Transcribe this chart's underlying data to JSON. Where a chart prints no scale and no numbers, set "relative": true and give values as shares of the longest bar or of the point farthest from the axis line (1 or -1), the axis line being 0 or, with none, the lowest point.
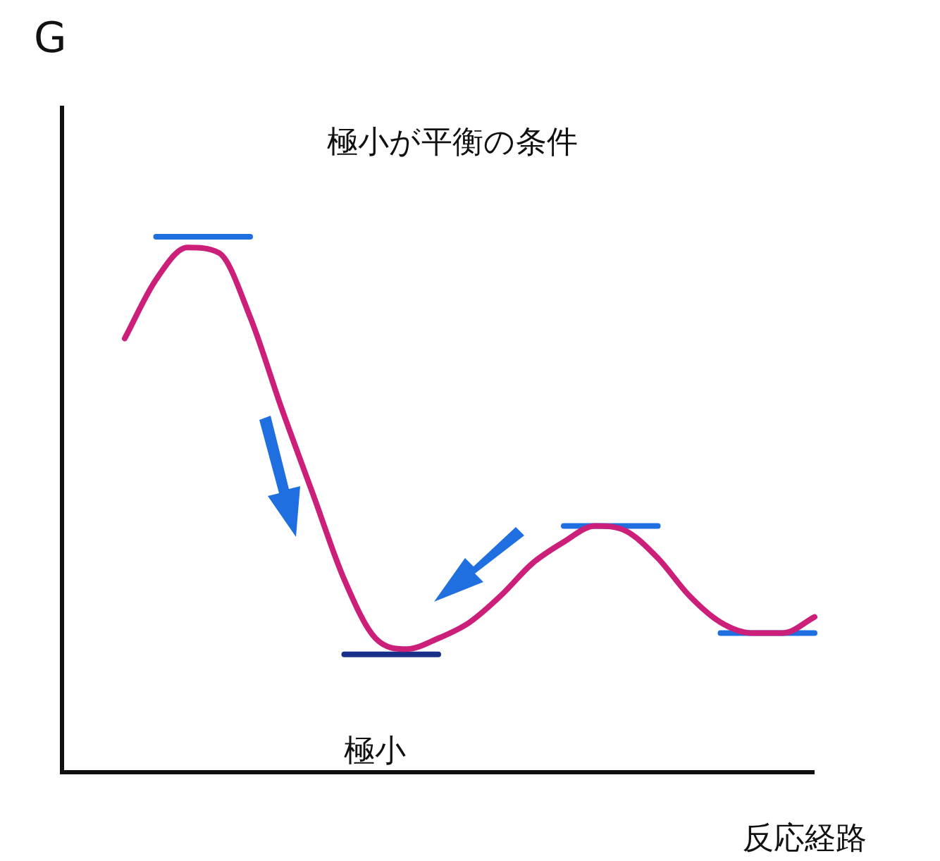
{
  "chart_data": {
    "type": "line",
    "title": "極小が平衡の条件",
    "ylabel": "G",
    "xlabel": "反応経路",
    "annotations": [
      "極小"
    ],
    "relative": true,
    "legend": false,
    "tick_labels": false,
    "marker": "none",
    "categories": [
      null,
      null,
      null,
      null,
      null,
      null,
      null,
      null,
      null,
      null,
      null,
      null,
      null,
      null,
      null,
      null,
      null,
      null,
      null,
      null,
      null,
      null,
      null,
      null,
      null
    ],
    "series": [
      {
        "color": "#cc1f7a",
        "values": [
          null,
          null,
          0.81,
          0.92,
          0.98,
          0.97,
          0.85,
          0.68,
          0.52,
          0.36,
          0.25,
          0.23,
          0.25,
          0.28,
          0.33,
          0.39,
          0.43,
          0.46,
          0.45,
          0.4,
          0.33,
          0.28,
          0.26,
          0.26,
          0.29
        ]
      },
      {
        "color": "#1f6fe0",
        "values": [
          null,
          null,
          null,
          1,
          1,
          1,
          1,
          null,
          null,
          null,
          null,
          null,
          null,
          null,
          null,
          null,
          null,
          null,
          null,
          null,
          null,
          null,
          null,
          null,
          null
        ]
      },
      {
        "color": "#1a2f8a",
        "values": [
          null,
          null,
          null,
          null,
          null,
          null,
          null,
          null,
          null,
          0.22,
          0.22,
          0.22,
          0.22,
          null,
          null,
          null,
          null,
          null,
          null,
          null,
          null,
          null,
          null,
          null,
          null
        ]
      },
      {
        "color": "#1f6fe0",
        "values": [
          null,
          null,
          null,
          null,
          null,
          null,
          null,
          null,
          null,
          null,
          null,
          null,
          null,
          null,
          null,
          null,
          0.46,
          0.46,
          0.46,
          0.46,
          null,
          null,
          null,
          null,
          null
        ]
      },
      {
        "color": "#1f6fe0",
        "values": [
          null,
          null,
          null,
          null,
          null,
          null,
          null,
          null,
          null,
          null,
          null,
          null,
          null,
          null,
          null,
          null,
          null,
          null,
          null,
          null,
          null,
          0.26,
          0.26,
          0.26,
          0.26
        ]
      }
    ]
  }
}
